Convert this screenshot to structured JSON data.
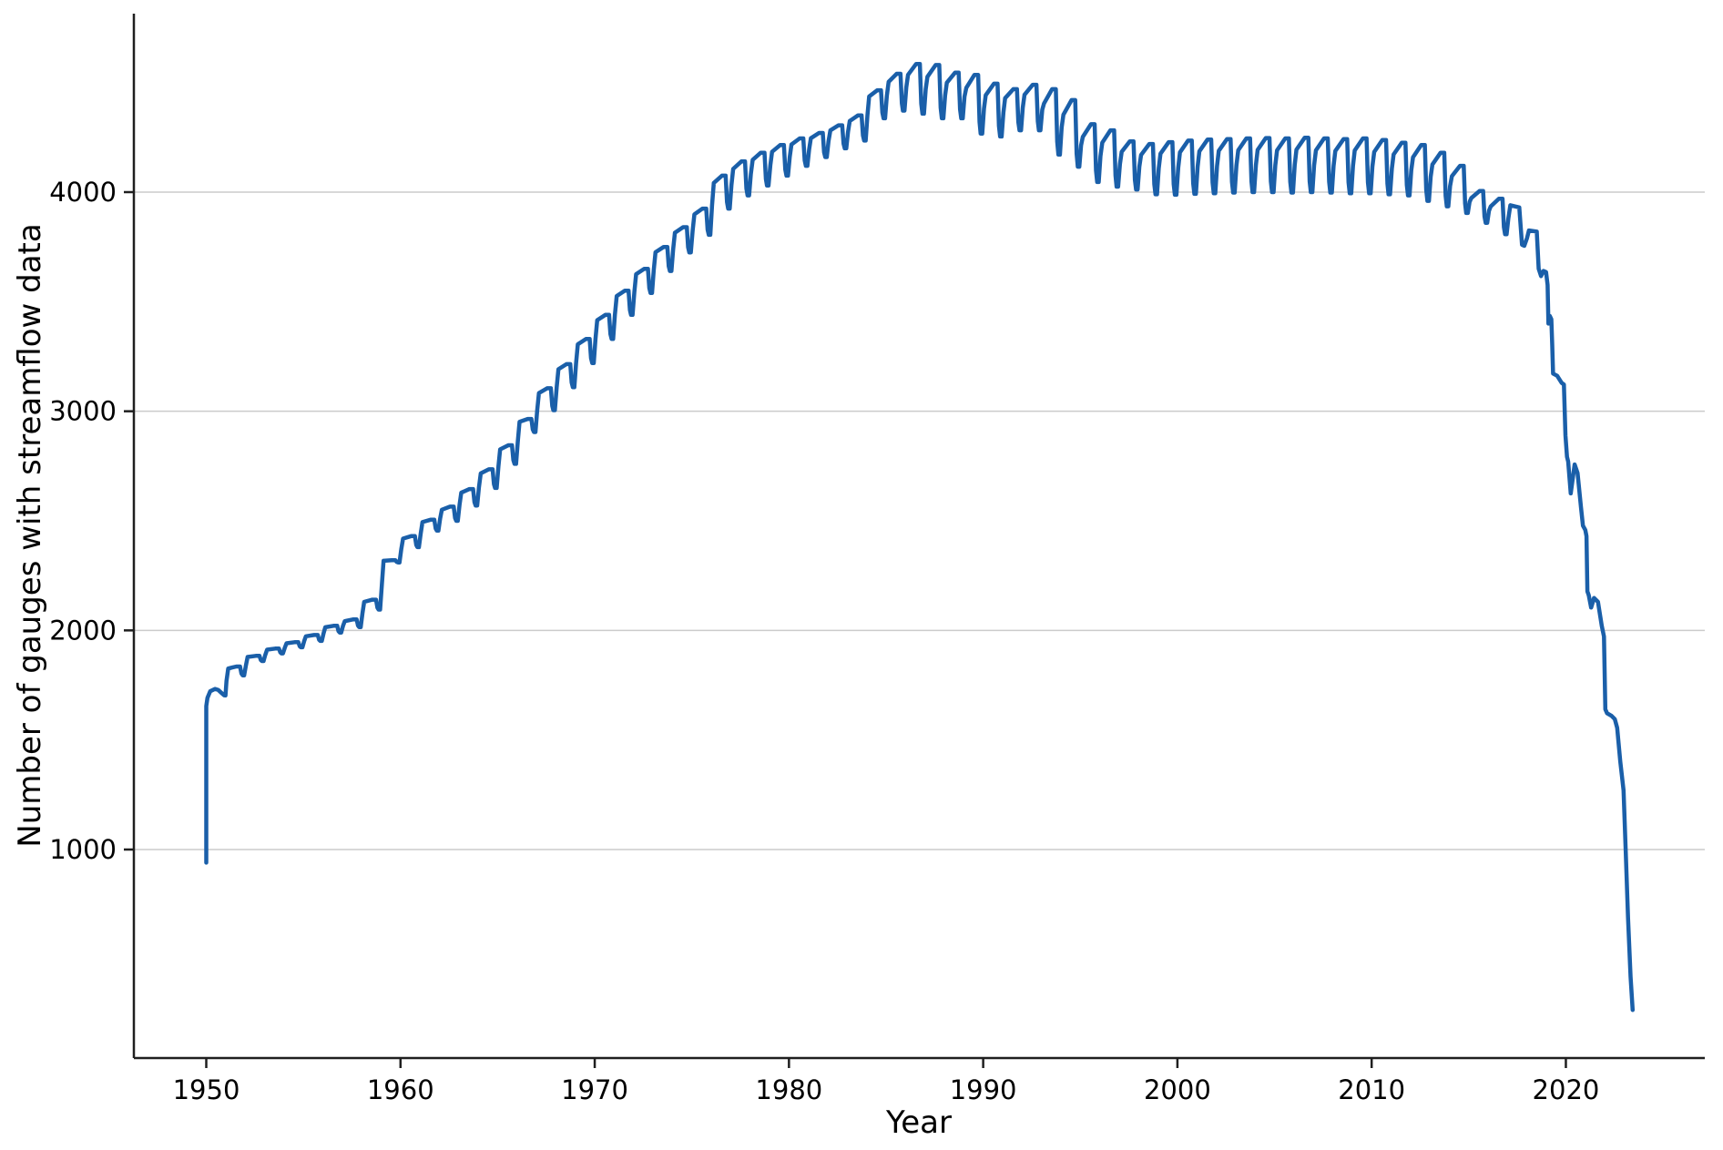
{
  "chart_data": {
    "type": "line",
    "title": "",
    "xlabel": "Year",
    "ylabel": "Number of gauges with streamflow data",
    "x_tick_values": [
      1950,
      1960,
      1970,
      1980,
      1990,
      2000,
      2010,
      2020
    ],
    "x_tick_labels": [
      "1950",
      "1960",
      "1970",
      "1980",
      "1990",
      "2000",
      "2010",
      "2020"
    ],
    "y_tick_values": [
      1000,
      2000,
      3000,
      4000
    ],
    "y_tick_labels": [
      "1000",
      "2000",
      "3000",
      "4000"
    ],
    "xlim": [
      1946.3,
      2027.2
    ],
    "ylim": [
      50,
      4800
    ],
    "grid": "horizontal",
    "legend": "none",
    "line_color": "#1a5fa9",
    "grid_color": "#cbcbcb",
    "spine_color": "#1f1f1f",
    "text_color": "#000000",
    "background_color": "#ffffff",
    "series_name": "gauges-with-streamflow-data",
    "head_points": [
      [
        1950.0,
        940
      ],
      [
        1950.0,
        1655
      ],
      [
        1950.06,
        1692
      ],
      [
        1950.2,
        1722
      ],
      [
        1950.45,
        1733
      ],
      [
        1950.62,
        1728
      ],
      [
        1950.78,
        1715
      ],
      [
        1950.92,
        1704
      ],
      [
        1950.99,
        1703
      ]
    ],
    "annual": {
      "years": [
        1951,
        1952,
        1953,
        1954,
        1955,
        1956,
        1957,
        1958,
        1959,
        1960,
        1961,
        1962,
        1963,
        1964,
        1965,
        1966,
        1967,
        1968,
        1969,
        1970,
        1971,
        1972,
        1973,
        1974,
        1975,
        1976,
        1977,
        1978,
        1979,
        1980,
        1981,
        1982,
        1983,
        1984,
        1985,
        1986,
        1987,
        1988,
        1989,
        1990,
        1991,
        1992,
        1993,
        1994,
        1995,
        1996,
        1997,
        1998,
        1999,
        2000,
        2001,
        2002,
        2003,
        2004,
        2005,
        2006,
        2007,
        2008,
        2009,
        2010,
        2011,
        2012,
        2013,
        2014,
        2015,
        2016
      ],
      "high": [
        1835,
        1884,
        1917,
        1946,
        1979,
        2021,
        2050,
        2140,
        2320,
        2430,
        2505,
        2565,
        2645,
        2735,
        2845,
        2965,
        3105,
        3215,
        3330,
        3440,
        3550,
        3650,
        3750,
        3840,
        3925,
        4075,
        4140,
        4180,
        4215,
        4245,
        4270,
        4305,
        4350,
        4465,
        4540,
        4585,
        4580,
        4545,
        4535,
        4495,
        4470,
        4490,
        4470,
        4420,
        4310,
        4282,
        4232,
        4220,
        4228,
        4235,
        4240,
        4242,
        4245,
        4247,
        4245,
        4248,
        4245,
        4242,
        4245,
        4238,
        4225,
        4215,
        4180,
        4120,
        4005,
        3970
      ],
      "low": [
        1795,
        1860,
        1895,
        1923,
        1952,
        1990,
        2015,
        2095,
        2310,
        2380,
        2455,
        2500,
        2570,
        2650,
        2760,
        2905,
        3005,
        3110,
        3220,
        3330,
        3440,
        3540,
        3640,
        3725,
        3805,
        3925,
        3985,
        4030,
        4075,
        4120,
        4160,
        4200,
        4235,
        4337,
        4372,
        4358,
        4337,
        4337,
        4267,
        4254,
        4282,
        4282,
        4171,
        4116,
        4046,
        4025,
        4012,
        3990,
        3988,
        3992,
        3995,
        3998,
        4000,
        4000,
        3998,
        4000,
        3998,
        3995,
        3995,
        3990,
        3985,
        3960,
        3935,
        3905,
        3860,
        3808
      ]
    },
    "tail_points": [
      [
        2017.04,
        3880
      ],
      [
        2017.14,
        3940
      ],
      [
        2017.6,
        3930
      ],
      [
        2017.74,
        3760
      ],
      [
        2017.86,
        3755
      ],
      [
        2018.0,
        3790
      ],
      [
        2018.1,
        3825
      ],
      [
        2018.5,
        3820
      ],
      [
        2018.6,
        3650
      ],
      [
        2018.72,
        3617
      ],
      [
        2018.85,
        3640
      ],
      [
        2018.98,
        3635
      ],
      [
        2019.06,
        3576
      ],
      [
        2019.1,
        3400
      ],
      [
        2019.17,
        3435
      ],
      [
        2019.25,
        3420
      ],
      [
        2019.3,
        3300
      ],
      [
        2019.34,
        3172
      ],
      [
        2019.55,
        3162
      ],
      [
        2019.78,
        3130
      ],
      [
        2019.9,
        3122
      ],
      [
        2019.98,
        2890
      ],
      [
        2020.06,
        2792
      ],
      [
        2020.12,
        2770
      ],
      [
        2020.25,
        2625
      ],
      [
        2020.45,
        2757
      ],
      [
        2020.6,
        2718
      ],
      [
        2020.78,
        2560
      ],
      [
        2020.88,
        2478
      ],
      [
        2021.0,
        2458
      ],
      [
        2021.06,
        2430
      ],
      [
        2021.11,
        2178
      ],
      [
        2021.18,
        2160
      ],
      [
        2021.3,
        2104
      ],
      [
        2021.45,
        2148
      ],
      [
        2021.65,
        2130
      ],
      [
        2021.85,
        2020
      ],
      [
        2021.96,
        1972
      ],
      [
        2022.03,
        1640
      ],
      [
        2022.12,
        1622
      ],
      [
        2022.35,
        1610
      ],
      [
        2022.52,
        1595
      ],
      [
        2022.64,
        1555
      ],
      [
        2022.8,
        1402
      ],
      [
        2022.97,
        1270
      ],
      [
        2023.08,
        990
      ],
      [
        2023.2,
        690
      ],
      [
        2023.33,
        420
      ],
      [
        2023.44,
        268
      ]
    ]
  }
}
